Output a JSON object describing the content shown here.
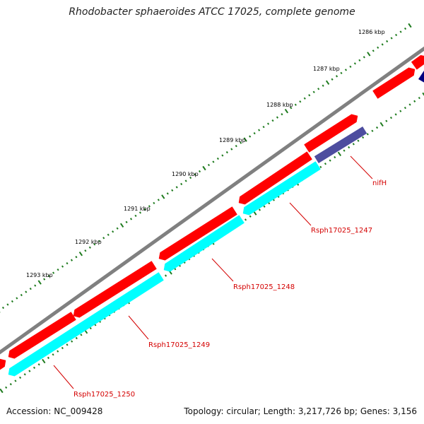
{
  "title": "Rhodobacter sphaeroides ATCC 17025, complete genome",
  "footer": {
    "accession": "Accession: NC_009428",
    "stats": "Topology: circular; Length: 3,217,726 bp; Genes: 3,156"
  },
  "axis": {
    "unit": "kbp",
    "labels": [
      "1286 kbp",
      "1287 kbp",
      "1288 kbp",
      "1289 kbp",
      "1290 kbp",
      "1291 kbp",
      "1292 kbp",
      "1293 kbp"
    ]
  },
  "gene_labels": [
    "nifH",
    "Rsph17025_1247",
    "Rsph17025_1248",
    "Rsph17025_1249",
    "Rsph17025_1250"
  ],
  "colors": {
    "backbone": "#808080",
    "outer_genes": "#ff0000",
    "inner_genes": "#00ffff",
    "nifH": "#4d4d9f",
    "label_text": "#d40000",
    "ticks": "#1e7b1e"
  }
}
